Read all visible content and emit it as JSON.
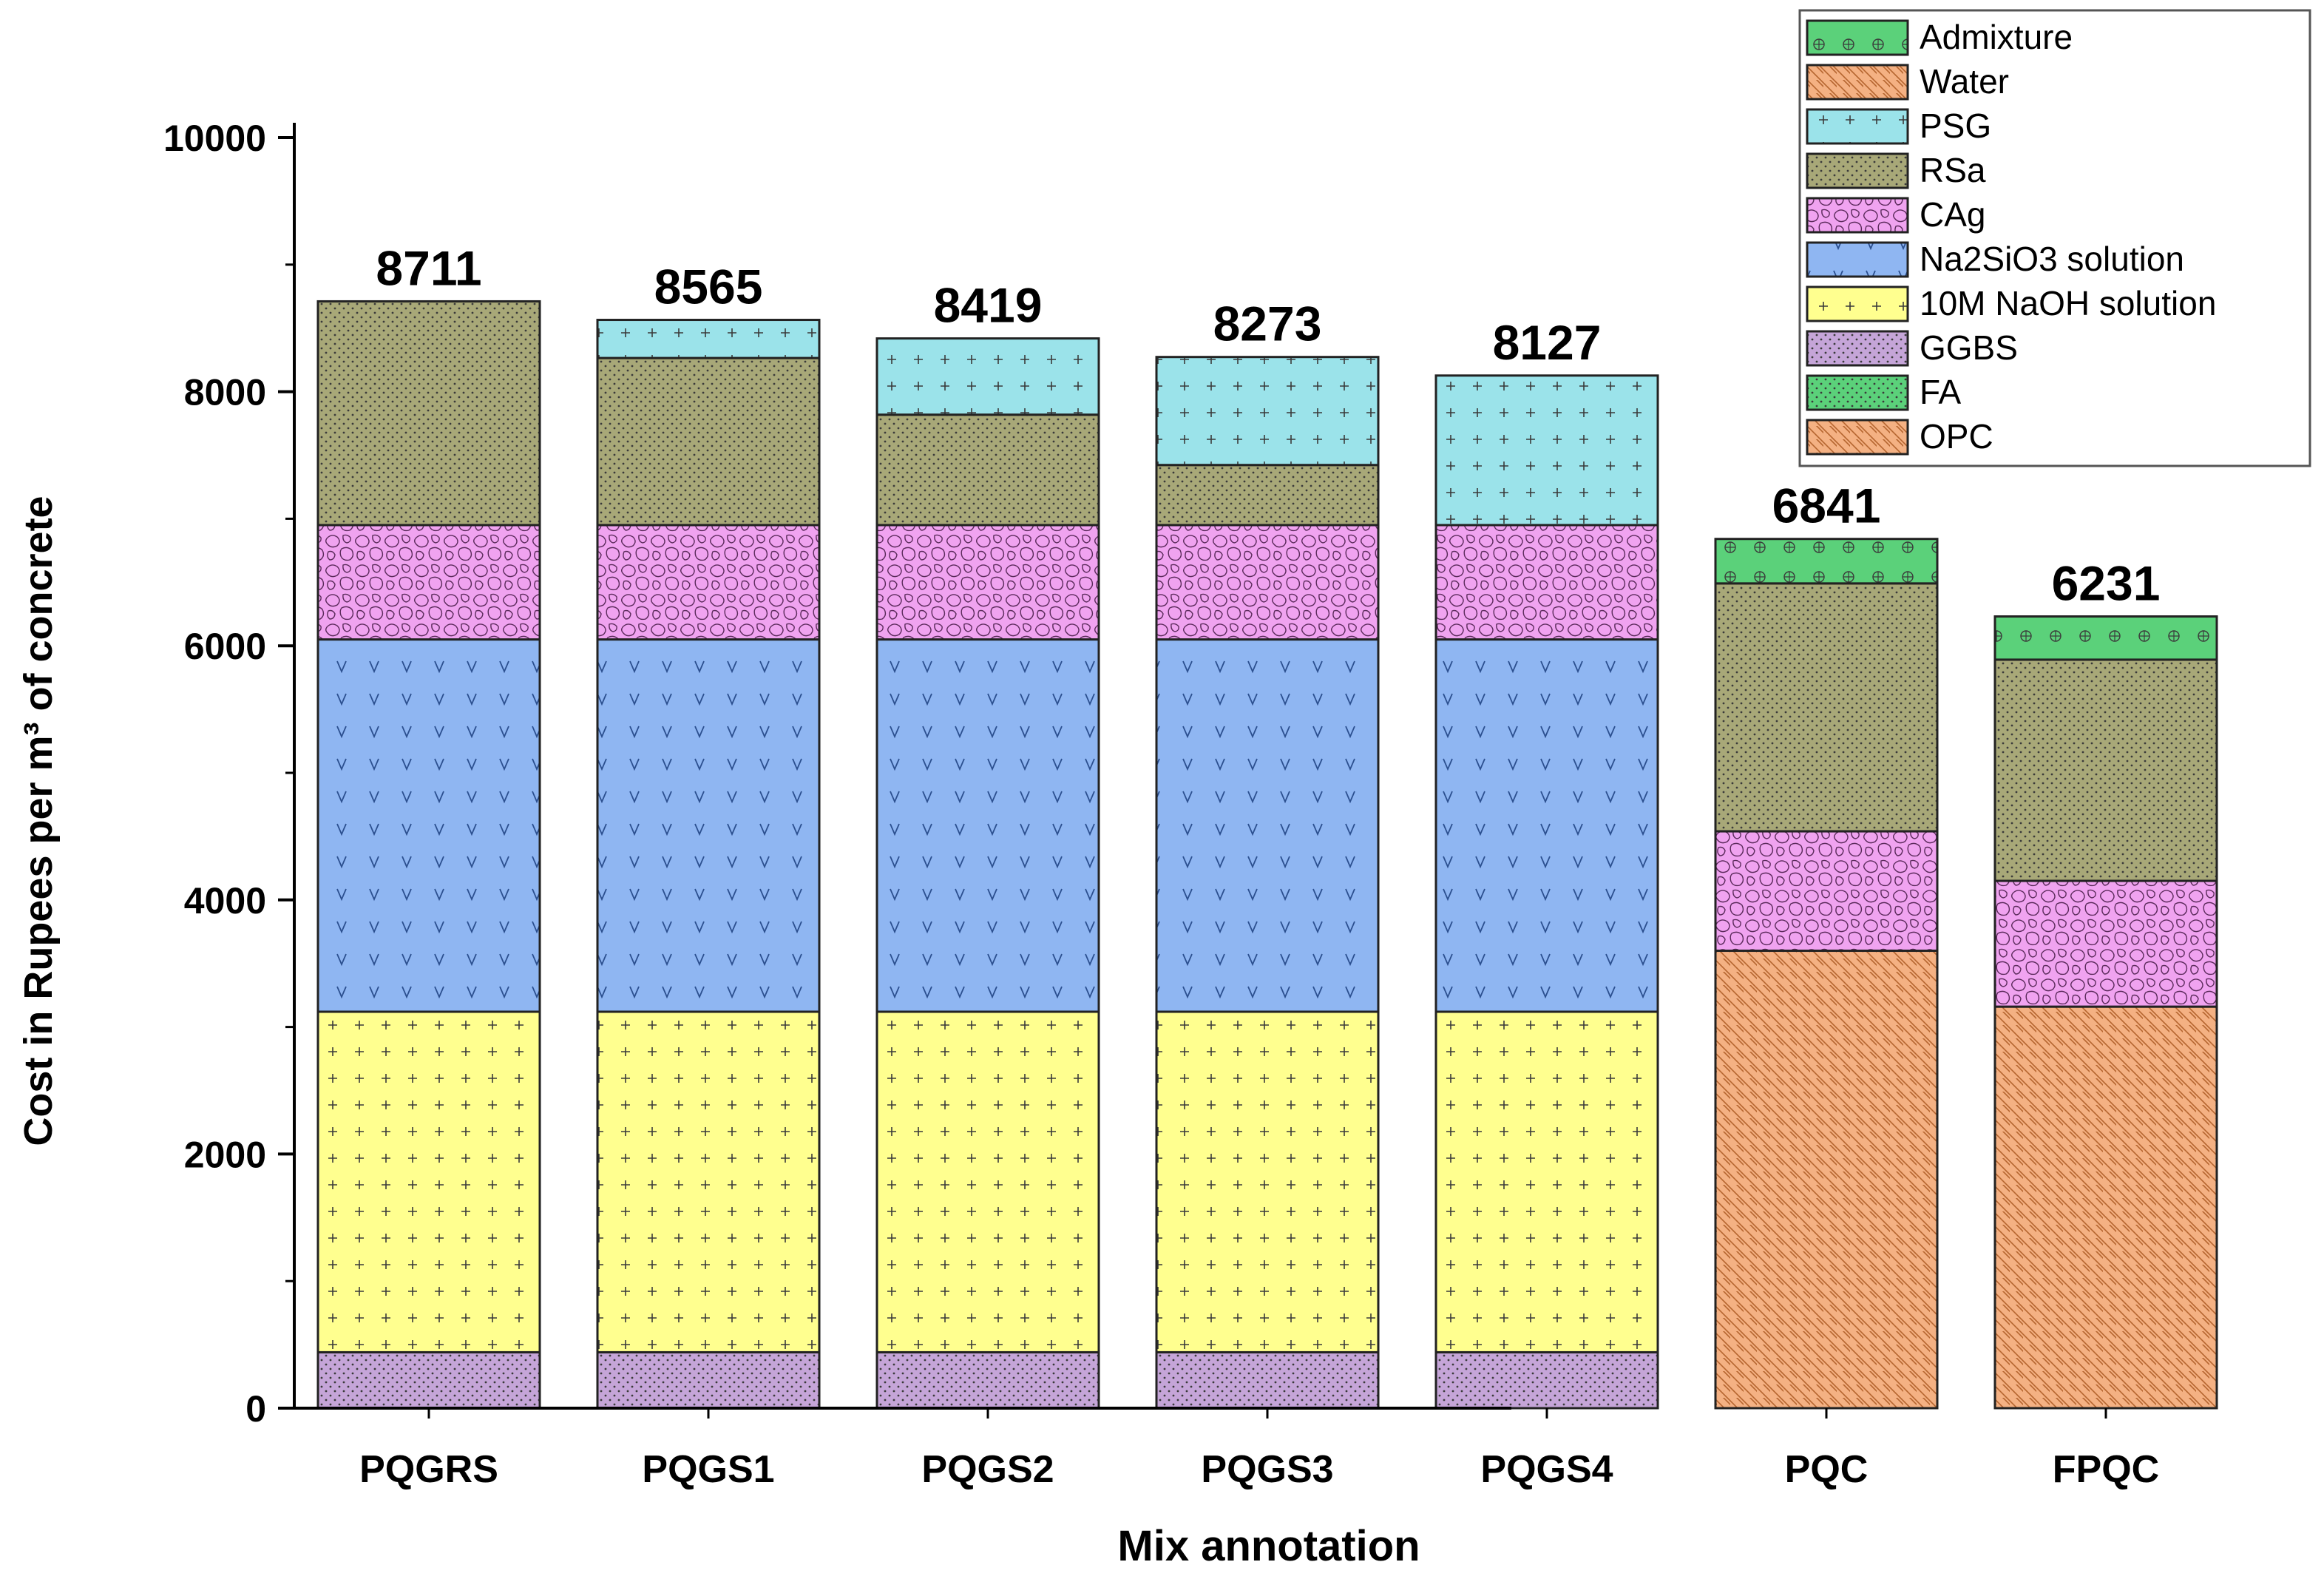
{
  "chart_data": {
    "type": "bar",
    "stacked": true,
    "xlabel": "Mix annotation",
    "ylabel": "Cost in Rupees per m³ of concrete",
    "ylim": [
      0,
      10000
    ],
    "yticks": [
      0,
      2000,
      4000,
      6000,
      8000,
      10000
    ],
    "legend_position": "top-right",
    "categories": [
      "PQGRS",
      "PQGS1",
      "PQGS2",
      "PQGS3",
      "PQGS4",
      "PQC",
      "FPQC"
    ],
    "totals": [
      8711,
      8565,
      8419,
      8273,
      8127,
      6841,
      6231
    ],
    "series": [
      {
        "name": "OPC",
        "color": "#f4b183",
        "pattern": "diag",
        "values": [
          0,
          0,
          0,
          0,
          0,
          3600,
          3160
        ]
      },
      {
        "name": "FA",
        "color": "#5bd17a",
        "pattern": "dots",
        "values": [
          0,
          0,
          0,
          0,
          0,
          0,
          0
        ]
      },
      {
        "name": "GGBS",
        "color": "#c5a5d8",
        "pattern": "dots",
        "values": [
          440,
          440,
          440,
          440,
          440,
          0,
          0
        ]
      },
      {
        "name": "10M NaOH solution",
        "color": "#ffff8f",
        "pattern": "plus",
        "values": [
          2680,
          2680,
          2680,
          2680,
          2680,
          0,
          0
        ]
      },
      {
        "name": "Na2SiO3 solution",
        "color": "#8fb6f2",
        "pattern": "vee",
        "values": [
          2930,
          2930,
          2930,
          2930,
          2930,
          0,
          0
        ]
      },
      {
        "name": "CAg",
        "color": "#f0a3f0",
        "pattern": "cells",
        "values": [
          900,
          900,
          900,
          900,
          900,
          940,
          990
        ]
      },
      {
        "name": "RSa",
        "color": "#a8a878",
        "pattern": "dots",
        "values": [
          1761,
          1315,
          869,
          473,
          0,
          1951,
          1741
        ]
      },
      {
        "name": "PSG",
        "color": "#9be3ea",
        "pattern": "plus",
        "values": [
          0,
          300,
          600,
          850,
          1177,
          0,
          0
        ]
      },
      {
        "name": "Water",
        "color": "#f4b183",
        "pattern": "diag",
        "values": [
          0,
          0,
          0,
          0,
          0,
          0,
          0
        ]
      },
      {
        "name": "Admixture",
        "color": "#5bd17a",
        "pattern": "circles",
        "values": [
          0,
          0,
          0,
          0,
          0,
          350,
          340
        ]
      }
    ],
    "legend_order": [
      "Admixture",
      "Water",
      "PSG",
      "RSa",
      "CAg",
      "Na2SiO3 solution",
      "10M NaOH solution",
      "GGBS",
      "FA",
      "OPC"
    ]
  }
}
